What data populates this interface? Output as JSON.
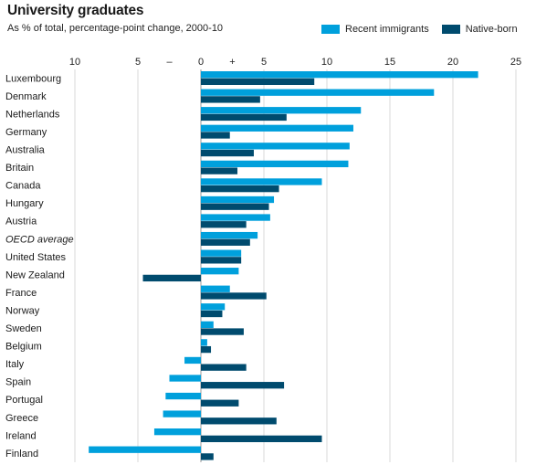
{
  "chart_data": {
    "type": "bar",
    "orientation": "horizontal",
    "title": "University graduates",
    "subtitle": "As % of total, percentage-point change, 2000-10",
    "xlim": [
      -10,
      25
    ],
    "xticks": [
      -10,
      -5,
      0,
      5,
      10,
      15,
      20,
      25
    ],
    "xtick_labels": [
      "10",
      "5",
      "0",
      "5",
      "10",
      "15",
      "20",
      "25"
    ],
    "sign_labels": {
      "minus": "–",
      "plus": "+"
    },
    "categories": [
      "Luxembourg",
      "Denmark",
      "Netherlands",
      "Germany",
      "Australia",
      "Britain",
      "Canada",
      "Hungary",
      "Austria",
      "OECD average",
      "United States",
      "New Zealand",
      "France",
      "Norway",
      "Sweden",
      "Belgium",
      "Italy",
      "Spain",
      "Portugal",
      "Greece",
      "Ireland",
      "Finland"
    ],
    "italic_category": "OECD average",
    "series": [
      {
        "name": "Recent immigrants",
        "color": "#00a0dc",
        "values": [
          22.0,
          18.5,
          12.7,
          12.1,
          11.8,
          11.7,
          9.6,
          5.8,
          5.5,
          4.5,
          3.2,
          3.0,
          2.3,
          1.9,
          1.0,
          0.5,
          -1.3,
          -2.5,
          -2.8,
          -3.0,
          -3.7,
          -8.9
        ]
      },
      {
        "name": "Native-born",
        "color": "#004b6e",
        "values": [
          9.0,
          4.7,
          6.8,
          2.3,
          4.2,
          2.9,
          6.2,
          5.4,
          3.6,
          3.9,
          3.2,
          -4.6,
          5.2,
          1.7,
          3.4,
          0.8,
          3.6,
          6.6,
          3.0,
          6.0,
          9.6,
          1.0
        ]
      }
    ],
    "legend_position": "top-right",
    "grid": true
  }
}
